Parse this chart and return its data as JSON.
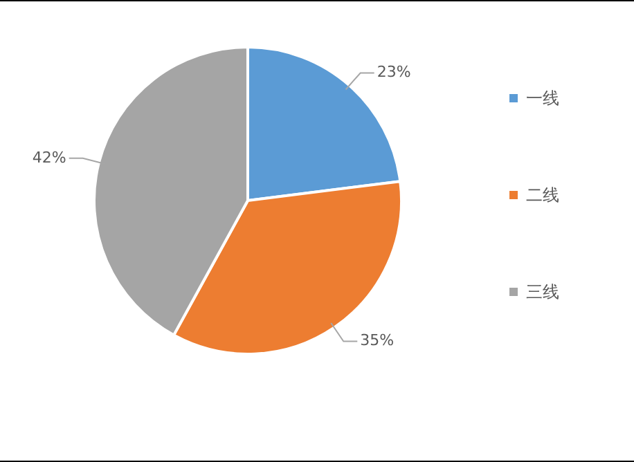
{
  "chart_data": {
    "type": "pie",
    "categories": [
      "一线",
      "二线",
      "三线"
    ],
    "values": [
      23,
      35,
      42
    ],
    "colors": [
      "#5b9bd5",
      "#ed7d31",
      "#a5a5a5"
    ],
    "value_labels": [
      "23%",
      "35%",
      "42%"
    ],
    "legend": "right"
  }
}
